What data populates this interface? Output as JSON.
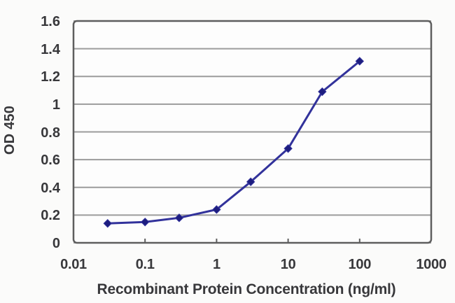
{
  "chart_data": {
    "type": "line",
    "title": "",
    "xlabel": "Recombinant Protein Concentration (ng/ml)",
    "ylabel": "OD 450",
    "x_scale": "log",
    "y_scale": "linear",
    "xlim": [
      0.01,
      1000
    ],
    "ylim": [
      0,
      1.6
    ],
    "x_ticks": [
      "0.01",
      "0.1",
      "1",
      "10",
      "100",
      "1000"
    ],
    "x_tick_values": [
      0.01,
      0.1,
      1,
      10,
      100,
      1000
    ],
    "y_ticks": [
      "0",
      "0.2",
      "0.4",
      "0.6",
      "0.8",
      "1",
      "1.2",
      "1.4",
      "1.6"
    ],
    "y_tick_values": [
      0,
      0.2,
      0.4,
      0.6,
      0.8,
      1,
      1.2,
      1.4,
      1.6
    ],
    "grid": "horizontal",
    "legend": "none",
    "marker": "diamond",
    "series": [
      {
        "name": "OD 450",
        "x": [
          0.03,
          0.1,
          0.3,
          1,
          3,
          10,
          30,
          100
        ],
        "y": [
          0.14,
          0.15,
          0.18,
          0.24,
          0.44,
          0.68,
          1.09,
          1.31
        ]
      }
    ],
    "colors": {
      "line": "#32329b",
      "marker": "#1d1d7f",
      "grid": "#9c9c9c",
      "axis": "#5e5e5e",
      "text": "#38383b",
      "plot_background": "#fdfdfd",
      "page_background": "#fbfbfa"
    }
  }
}
